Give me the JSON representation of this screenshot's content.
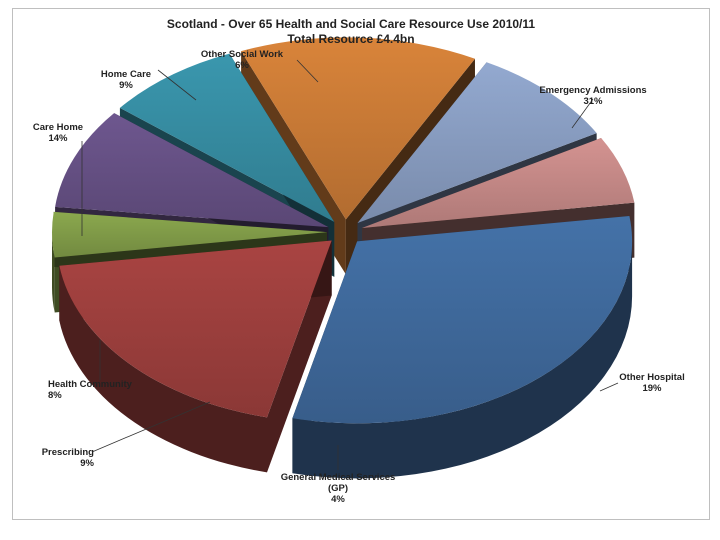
{
  "chart_data": {
    "type": "pie",
    "title": "Scotland - Over 65 Health and Social Care Resource Use 2010/11",
    "subtitle": "Total Resource £4.4bn",
    "legend": "none",
    "slices": [
      {
        "label": "Emergency Admissions",
        "value_text": "31%",
        "value": 31,
        "color": "#4472A8"
      },
      {
        "label": "Other Hospital",
        "value_text": "19%",
        "value": 19,
        "color": "#A94442"
      },
      {
        "label": "General Medical Services (GP)",
        "label_lines": [
          "General Medical Services",
          "(GP)"
        ],
        "value_text": "4%",
        "value": 4,
        "color": "#8BA84E"
      },
      {
        "label": "Prescribing",
        "value_text": "9%",
        "value": 9,
        "color": "#6E578F"
      },
      {
        "label": "Health Community",
        "value_text": "8%",
        "value": 8,
        "color": "#3A97AE"
      },
      {
        "label": "Care Home",
        "value_text": "14%",
        "value": 14,
        "color": "#D9843A"
      },
      {
        "label": "Home Care",
        "value_text": "9%",
        "value": 9,
        "color": "#93A9D0"
      },
      {
        "label": "Other Social Work",
        "value_text": "6%",
        "value": 6,
        "color": "#D49391"
      }
    ]
  }
}
